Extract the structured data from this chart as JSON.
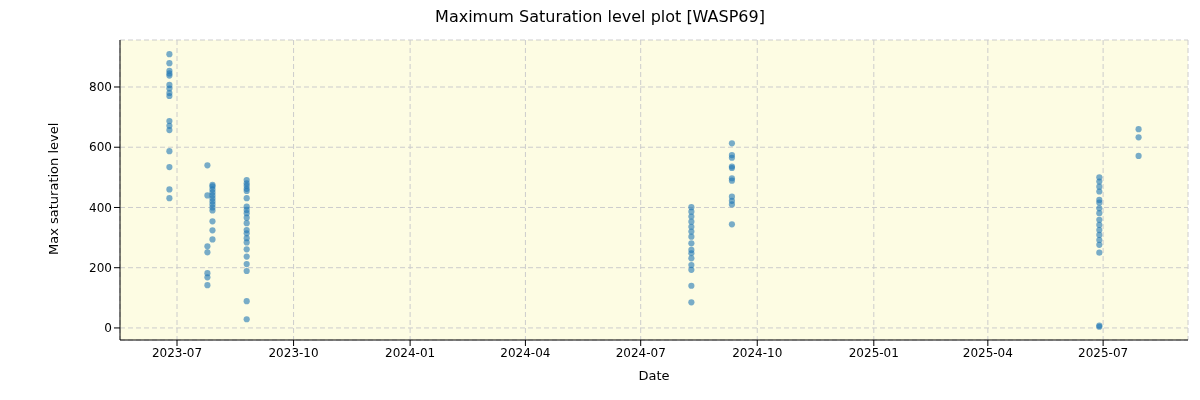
{
  "chart_data": {
    "type": "scatter",
    "title": "Maximum Saturation level plot [WASP69]",
    "xlabel": "Date",
    "ylabel": "Max saturation level",
    "series": [
      {
        "color": "#1f77b4",
        "x": [
          "2023-06-25",
          "2023-06-25",
          "2023-06-25",
          "2023-06-25",
          "2023-06-25",
          "2023-06-25",
          "2023-06-25",
          "2023-06-25",
          "2023-06-25",
          "2023-06-25",
          "2023-06-25",
          "2023-06-25",
          "2023-06-25",
          "2023-06-25",
          "2023-06-25",
          "2023-06-25",
          "2023-07-25",
          "2023-07-25",
          "2023-07-25",
          "2023-07-25",
          "2023-07-25",
          "2023-07-25",
          "2023-07-25",
          "2023-07-29",
          "2023-07-29",
          "2023-07-29",
          "2023-07-29",
          "2023-07-29",
          "2023-07-29",
          "2023-07-29",
          "2023-07-29",
          "2023-07-29",
          "2023-07-29",
          "2023-07-29",
          "2023-07-29",
          "2023-07-29",
          "2023-08-25",
          "2023-08-25",
          "2023-08-25",
          "2023-08-25",
          "2023-08-25",
          "2023-08-25",
          "2023-08-25",
          "2023-08-25",
          "2023-08-25",
          "2023-08-25",
          "2023-08-25",
          "2023-08-25",
          "2023-08-25",
          "2023-08-25",
          "2023-08-25",
          "2023-08-25",
          "2023-08-25",
          "2023-08-25",
          "2023-08-25",
          "2023-08-25",
          "2023-08-25",
          "2024-08-10",
          "2024-08-10",
          "2024-08-10",
          "2024-08-10",
          "2024-08-10",
          "2024-08-10",
          "2024-08-10",
          "2024-08-10",
          "2024-08-10",
          "2024-08-10",
          "2024-08-10",
          "2024-08-10",
          "2024-08-10",
          "2024-08-10",
          "2024-08-10",
          "2024-09-11",
          "2024-09-11",
          "2024-09-11",
          "2024-09-11",
          "2024-09-11",
          "2024-09-11",
          "2024-09-11",
          "2024-09-11",
          "2024-09-11",
          "2024-09-11",
          "2024-09-11",
          "2025-06-28",
          "2025-06-28",
          "2025-06-28",
          "2025-06-28",
          "2025-06-28",
          "2025-06-28",
          "2025-06-28",
          "2025-06-28",
          "2025-06-28",
          "2025-06-28",
          "2025-06-28",
          "2025-06-28",
          "2025-06-28",
          "2025-06-28",
          "2025-06-28",
          "2025-06-28",
          "2025-06-28",
          "2025-07-29",
          "2025-07-29",
          "2025-07-29"
        ],
        "values": [
          909,
          879,
          854,
          845,
          838,
          807,
          795,
          780,
          770,
          687,
          671,
          657,
          587,
          534,
          460,
          431,
          540,
          440,
          271,
          251,
          182,
          168,
          142,
          475,
          470,
          460,
          450,
          440,
          430,
          420,
          410,
          400,
          390,
          354,
          324,
          294,
          491,
          480,
          472,
          462,
          455,
          431,
          403,
          392,
          381,
          366,
          348,
          325,
          314,
          298,
          284,
          261,
          237,
          212,
          189,
          89,
          29,
          401,
          386,
          370,
          353,
          336,
          320,
          303,
          281,
          259,
          248,
          231,
          209,
          193,
          140,
          85,
          613,
          574,
          565,
          536,
          531,
          497,
          489,
          436,
          422,
          410,
          344,
          500,
          486,
          469,
          453,
          425,
          416,
          397,
          381,
          359,
          342,
          325,
          309,
          292,
          276,
          250,
          8,
          4,
          660,
          633,
          571
        ]
      }
    ],
    "xlim": [
      "2023-05-17",
      "2025-09-06"
    ],
    "xticks": [
      {
        "value": "2023-07-01",
        "label": "2023-07"
      },
      {
        "value": "2023-10-01",
        "label": "2023-10"
      },
      {
        "value": "2024-01-01",
        "label": "2024-01"
      },
      {
        "value": "2024-04-01",
        "label": "2024-04"
      },
      {
        "value": "2024-07-01",
        "label": "2024-07"
      },
      {
        "value": "2024-10-01",
        "label": "2024-10"
      },
      {
        "value": "2025-01-01",
        "label": "2025-01"
      },
      {
        "value": "2025-04-01",
        "label": "2025-04"
      },
      {
        "value": "2025-07-01",
        "label": "2025-07"
      }
    ],
    "ylim": [
      -40,
      956
    ],
    "yticks": [
      0,
      200,
      400,
      600,
      800
    ],
    "grid": true,
    "marker": "circle"
  }
}
